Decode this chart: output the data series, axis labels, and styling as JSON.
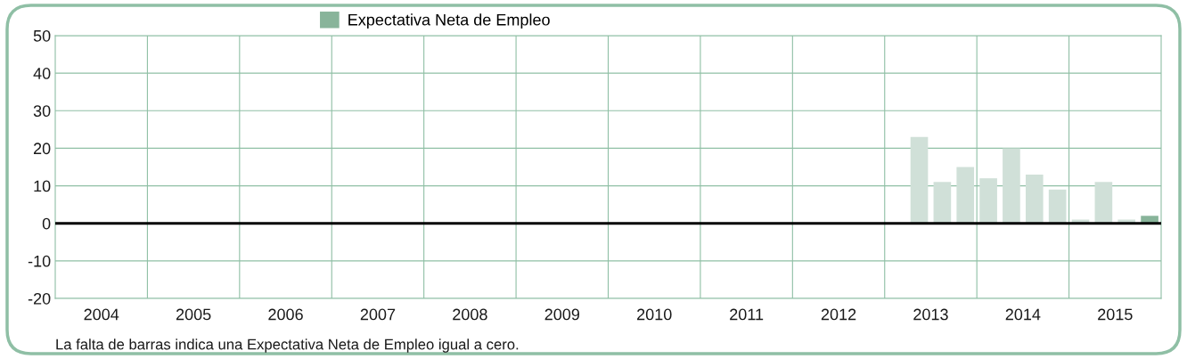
{
  "chart_data": {
    "type": "bar",
    "x": [
      2013.375,
      2013.625,
      2013.875,
      2014.125,
      2014.375,
      2014.625,
      2014.875,
      2015.125,
      2015.375,
      2015.625,
      2015.875
    ],
    "series": [
      {
        "name": "Expectativa Neta de Empleo",
        "color": "#88b49a",
        "values": [
          23,
          11,
          15,
          12,
          20,
          13,
          9,
          1,
          11,
          1,
          2
        ],
        "colors": [
          "#d0e0d8",
          "#d0e0d8",
          "#d0e0d8",
          "#d0e0d8",
          "#d0e0d8",
          "#d0e0d8",
          "#d0e0d8",
          "#d0e0d8",
          "#d0e0d8",
          "#d0e0d8",
          "#88b49a"
        ]
      }
    ],
    "xlim": [
      2004,
      2016
    ],
    "xticks": [
      {
        "value": 2004.5,
        "label": "2004"
      },
      {
        "value": 2005.5,
        "label": "2005"
      },
      {
        "value": 2006.5,
        "label": "2006"
      },
      {
        "value": 2007.5,
        "label": "2007"
      },
      {
        "value": 2008.5,
        "label": "2008"
      },
      {
        "value": 2009.5,
        "label": "2009"
      },
      {
        "value": 2010.5,
        "label": "2010"
      },
      {
        "value": 2011.5,
        "label": "2011"
      },
      {
        "value": 2012.5,
        "label": "2012"
      },
      {
        "value": 2013.5,
        "label": "2013"
      },
      {
        "value": 2014.5,
        "label": "2014"
      },
      {
        "value": 2015.5,
        "label": "2015"
      },
      {
        "value": 2005,
        "label": null
      },
      {
        "value": 2006,
        "label": null
      },
      {
        "value": 2007,
        "label": null
      },
      {
        "value": 2008,
        "label": null
      },
      {
        "value": 2009,
        "label": null
      },
      {
        "value": 2010,
        "label": null
      },
      {
        "value": 2011,
        "label": null
      },
      {
        "value": 2012,
        "label": null
      },
      {
        "value": 2013,
        "label": null
      },
      {
        "value": 2014,
        "label": null
      },
      {
        "value": 2015,
        "label": null
      }
    ],
    "ylim": [
      -20,
      50
    ],
    "yticks": [
      -20,
      -10,
      0,
      10,
      20,
      30,
      40,
      50
    ],
    "grid": true,
    "legend": "top",
    "ref_lines": [
      {
        "axis": "y",
        "value": 0,
        "color": "#000000"
      }
    ],
    "annotations": [
      "La falta de barras indica una Expectativa Neta de Empleo igual a cero."
    ]
  }
}
